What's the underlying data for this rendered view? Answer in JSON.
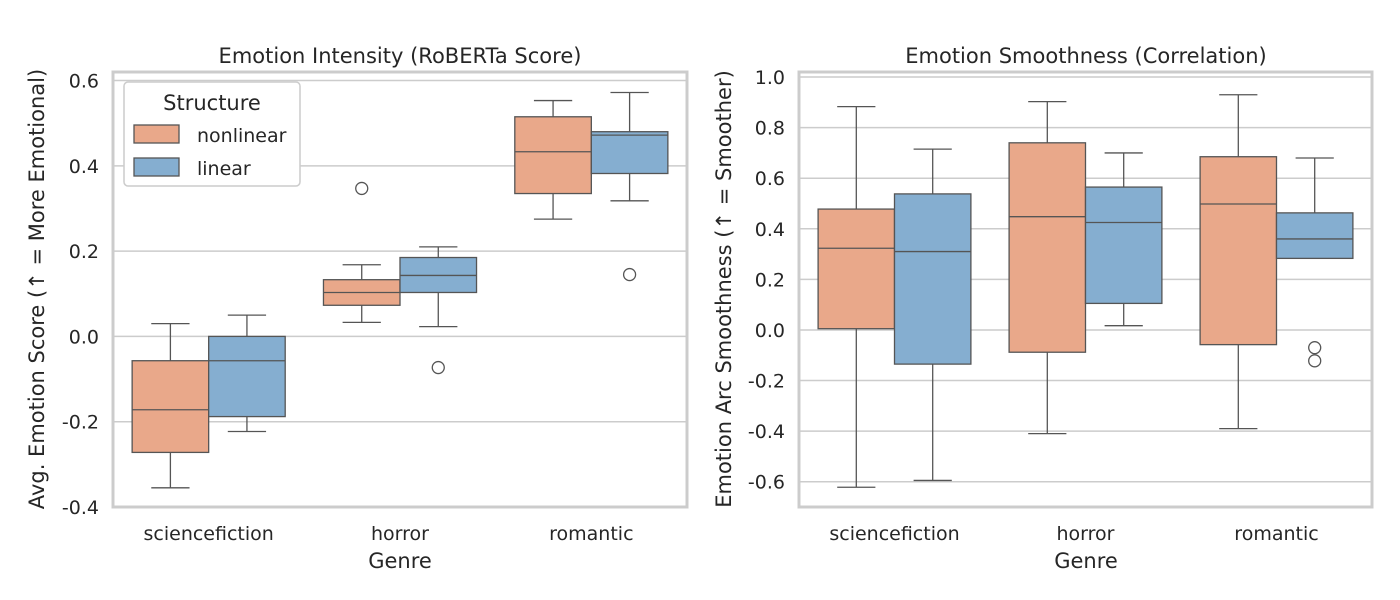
{
  "colors": {
    "nonlinear": "#e9a88a",
    "linear": "#85aed0"
  },
  "legend": {
    "title": "Structure",
    "entries": [
      "nonlinear",
      "linear"
    ]
  },
  "chart_data": [
    {
      "type": "box",
      "title": "Emotion Intensity (RoBERTa Score)",
      "xlabel": "Genre",
      "ylabel": "Avg. Emotion Score (↑ = More Emotional)",
      "categories": [
        "sciencefiction",
        "horror",
        "romantic"
      ],
      "ylim": [
        -0.4,
        0.62
      ],
      "yticks": [
        -0.4,
        -0.2,
        0.0,
        0.2,
        0.4,
        0.6
      ],
      "ytick_labels": [
        "-0.4",
        "-0.2",
        "0.0",
        "0.2",
        "0.4",
        "0.6"
      ],
      "grid": true,
      "legend_position": "top-left",
      "series": [
        {
          "name": "nonlinear",
          "boxes": [
            {
              "whislo": -0.355,
              "q1": -0.272,
              "med": -0.172,
              "q3": -0.057,
              "whishi": 0.03,
              "fliers": []
            },
            {
              "whislo": 0.033,
              "q1": 0.073,
              "med": 0.103,
              "q3": 0.133,
              "whishi": 0.168,
              "fliers": [
                0.347
              ]
            },
            {
              "whislo": 0.275,
              "q1": 0.335,
              "med": 0.433,
              "q3": 0.515,
              "whishi": 0.553,
              "fliers": []
            }
          ]
        },
        {
          "name": "linear",
          "boxes": [
            {
              "whislo": -0.223,
              "q1": -0.188,
              "med": -0.057,
              "q3": 0.0,
              "whishi": 0.05,
              "fliers": []
            },
            {
              "whislo": 0.023,
              "q1": 0.103,
              "med": 0.143,
              "q3": 0.185,
              "whishi": 0.21,
              "fliers": [
                -0.073
              ]
            },
            {
              "whislo": 0.318,
              "q1": 0.382,
              "med": 0.472,
              "q3": 0.48,
              "whishi": 0.572,
              "fliers": [
                0.145
              ]
            }
          ]
        }
      ]
    },
    {
      "type": "box",
      "title": "Emotion Smoothness (Correlation)",
      "xlabel": "Genre",
      "ylabel": "Emotion Arc Smoothness (↑ = Smoother)",
      "categories": [
        "sciencefiction",
        "horror",
        "romantic"
      ],
      "ylim": [
        -0.7,
        1.02
      ],
      "yticks": [
        -0.6,
        -0.4,
        -0.2,
        0.0,
        0.2,
        0.4,
        0.6,
        0.8,
        1.0
      ],
      "ytick_labels": [
        "-0.6",
        "-0.4",
        "-0.2",
        "0.0",
        "0.2",
        "0.4",
        "0.6",
        "0.8",
        "1.0"
      ],
      "grid": true,
      "series": [
        {
          "name": "nonlinear",
          "boxes": [
            {
              "whislo": -0.622,
              "q1": 0.005,
              "med": 0.323,
              "q3": 0.478,
              "whishi": 0.883,
              "fliers": []
            },
            {
              "whislo": -0.41,
              "q1": -0.088,
              "med": 0.448,
              "q3": 0.74,
              "whishi": 0.903,
              "fliers": []
            },
            {
              "whislo": -0.39,
              "q1": -0.058,
              "med": 0.498,
              "q3": 0.685,
              "whishi": 0.93,
              "fliers": []
            }
          ]
        },
        {
          "name": "linear",
          "boxes": [
            {
              "whislo": -0.595,
              "q1": -0.135,
              "med": 0.31,
              "q3": 0.538,
              "whishi": 0.715,
              "fliers": []
            },
            {
              "whislo": 0.017,
              "q1": 0.105,
              "med": 0.425,
              "q3": 0.565,
              "whishi": 0.7,
              "fliers": []
            },
            {
              "whislo": 0.283,
              "q1": 0.283,
              "med": 0.36,
              "q3": 0.463,
              "whishi": 0.68,
              "fliers": [
                -0.07,
                -0.122
              ]
            }
          ]
        }
      ]
    }
  ]
}
